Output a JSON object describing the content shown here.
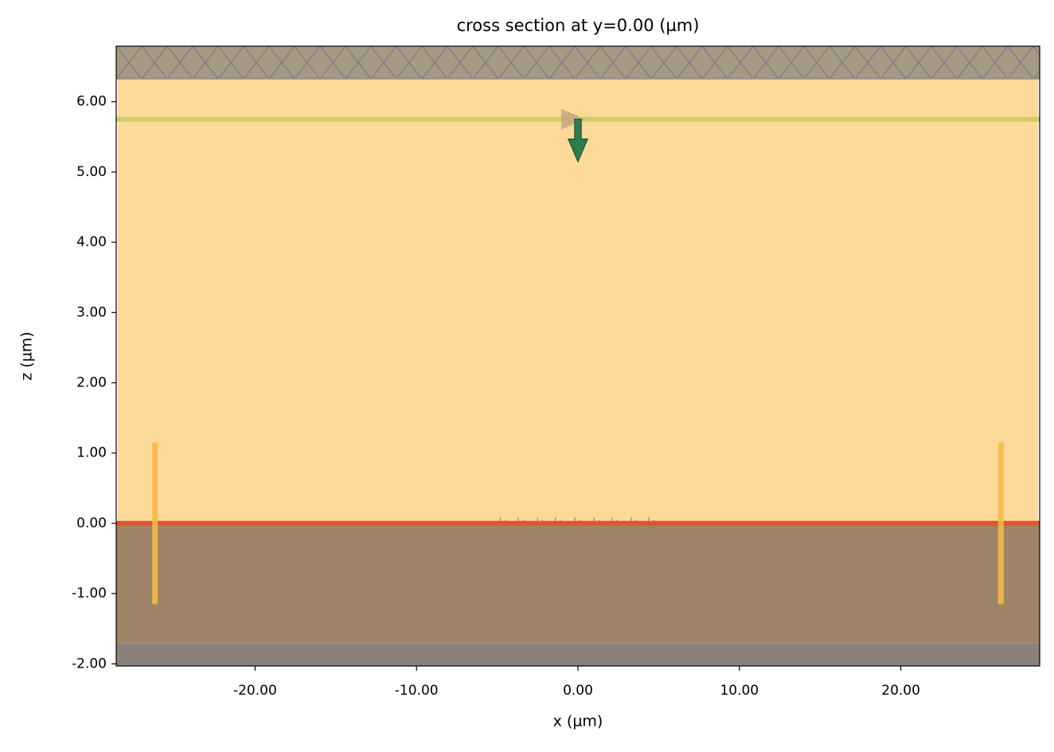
{
  "chart_data": {
    "type": "cross-section",
    "title": "cross section at y=0.00 (µm)",
    "x_label": "x (µm)",
    "y_label": "z (µm)",
    "xlim": [
      -28.6,
      28.6
    ],
    "ylim": [
      -2.03,
      6.79
    ],
    "xticks": [
      {
        "value": -20,
        "label": "-20.00"
      },
      {
        "value": -10,
        "label": "-10.00"
      },
      {
        "value": 0,
        "label": "0.00"
      },
      {
        "value": 10,
        "label": "10.00"
      },
      {
        "value": 20,
        "label": "20.00"
      }
    ],
    "yticks": [
      {
        "value": -2,
        "label": "-2.00"
      },
      {
        "value": -1,
        "label": "-1.00"
      },
      {
        "value": 0,
        "label": "0.00"
      },
      {
        "value": 1,
        "label": "1.00"
      },
      {
        "value": 2,
        "label": "2.00"
      },
      {
        "value": 3,
        "label": "3.00"
      },
      {
        "value": 4,
        "label": "4.00"
      },
      {
        "value": 5,
        "label": "5.00"
      },
      {
        "value": 6,
        "label": "6.00"
      }
    ],
    "regions": [
      {
        "x": [
          -28.6,
          28.6
        ],
        "z": [
          -2.03,
          -1.71
        ],
        "color": "#8a817b",
        "hatch": false
      },
      {
        "x": [
          -28.6,
          28.6
        ],
        "z": [
          -1.71,
          0
        ],
        "color": "#9e8466",
        "hatch": false
      },
      {
        "x": [
          -28.5,
          28.5
        ],
        "z": [
          0,
          6.33
        ],
        "color": "#fdd998",
        "hatch": false
      },
      {
        "x": [
          -28.6,
          28.6
        ],
        "z": [
          6.33,
          6.79
        ],
        "color": "#a69a84",
        "hatch": true
      }
    ],
    "planes": [
      {
        "z": 0,
        "x": [
          -28.6,
          28.6
        ],
        "color": "#d9582f"
      },
      {
        "z": 5.75,
        "x": [
          -28.6,
          28.6
        ],
        "color": "#cfcf66"
      }
    ],
    "monitors": [
      {
        "x": -26.2,
        "z": [
          -1.15,
          1.15
        ],
        "color": "#f7b84b"
      },
      {
        "x": 26.2,
        "z": [
          -1.15,
          1.15
        ],
        "color": "#f7b84b"
      }
    ],
    "grating": {
      "x": [
        -4.8,
        -4.5,
        -3.7,
        -3.3,
        -2.5,
        -2.2,
        -1.4,
        -1.1,
        -0.2,
        0.1,
        1.0,
        1.3,
        2.1,
        2.4,
        3.3,
        3.6,
        4.4,
        4.7
      ],
      "height": 0.08,
      "color": "#8a7a5a"
    },
    "source_arrow": {
      "x": 0,
      "z": [
        5.75,
        5.15
      ],
      "color": "#2e7d4f"
    },
    "polarization": {
      "x": 0,
      "z": 5.75,
      "color": "#c4a882"
    }
  }
}
